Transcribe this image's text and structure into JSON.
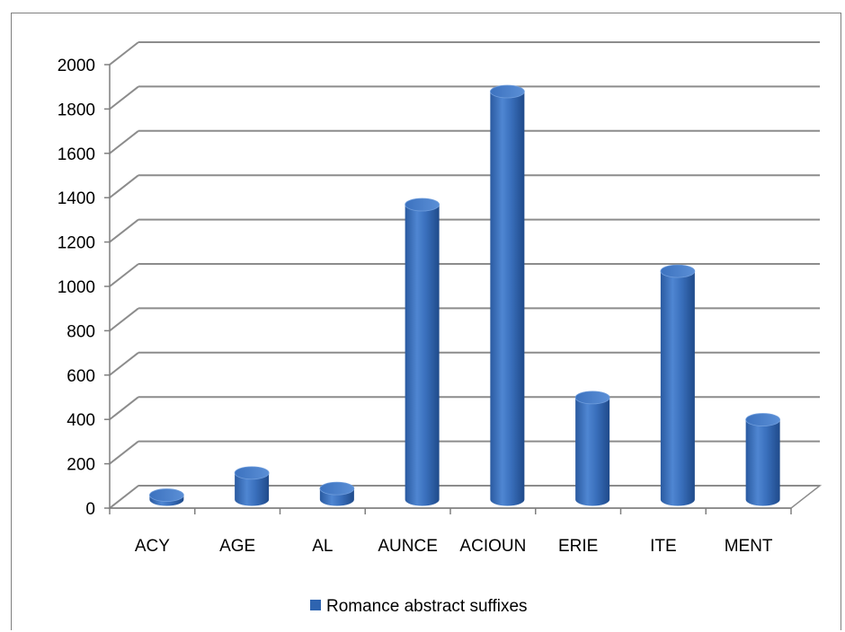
{
  "chart_data": {
    "type": "bar",
    "style": "3d-cylinder",
    "categories": [
      "ACY",
      "AGE",
      "AL",
      "AUNCE",
      "ACIOUN",
      "ERIE",
      "ITE",
      "MENT"
    ],
    "series": [
      {
        "name": "Romance abstract suffixes",
        "values": [
          20,
          120,
          50,
          1330,
          1840,
          460,
          1030,
          360
        ],
        "color": "#2e64b0"
      }
    ],
    "yticks": [
      "0",
      "200",
      "400",
      "600",
      "800",
      "1000",
      "1200",
      "1400",
      "1600",
      "1800",
      "2000"
    ],
    "ylim": [
      0,
      2000
    ],
    "grid": true,
    "legend": "bottom"
  }
}
